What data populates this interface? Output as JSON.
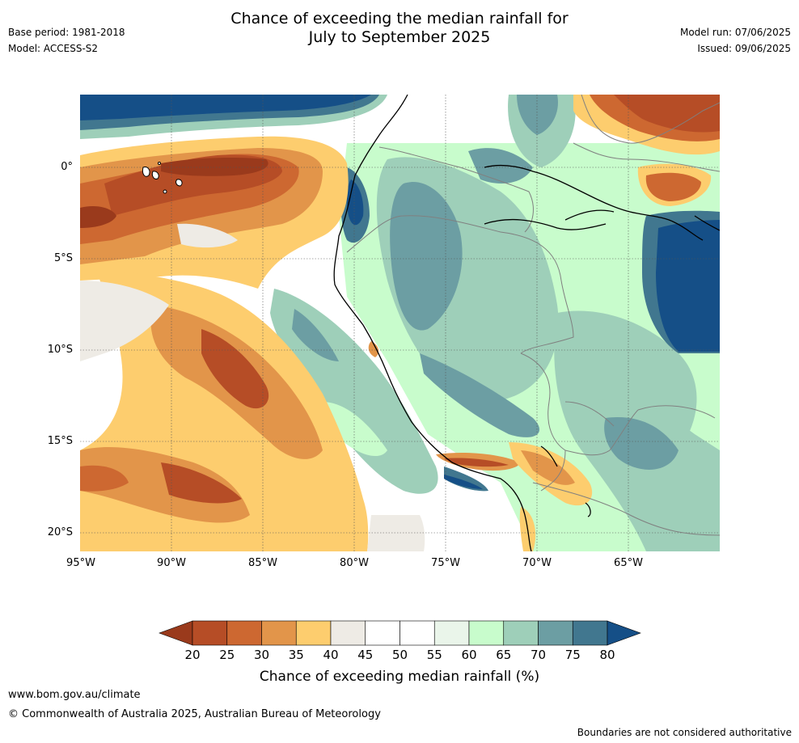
{
  "header": {
    "title_line1": "Chance of exceeding the median rainfall for",
    "title_line2": "July to September 2025",
    "base_period": "Base period: 1981-2018",
    "model": "Model: ACCESS-S2",
    "model_run": "Model run: 07/06/2025",
    "issued": "Issued: 09/06/2025"
  },
  "axes": {
    "lat_labels": [
      "0°",
      "5°S",
      "10°S",
      "15°S",
      "20°S"
    ],
    "lon_labels": [
      "95°W",
      "90°W",
      "85°W",
      "80°W",
      "75°W",
      "70°W",
      "65°W"
    ]
  },
  "colorbar": {
    "title": "Chance of exceeding median rainfall (%)",
    "ticks": [
      "20",
      "25",
      "30",
      "35",
      "40",
      "45",
      "50",
      "55",
      "60",
      "65",
      "70",
      "75",
      "80"
    ],
    "colors": [
      "#9a3a1c",
      "#b64d26",
      "#cd6831",
      "#e2954a",
      "#fdcd6e",
      "#eeebe5",
      "#ffffff",
      "#ffffff",
      "#eaf5ea",
      "#c8fccc",
      "#9ecfb9",
      "#6c9ea3",
      "#41778f",
      "#154f87"
    ],
    "extend": "both"
  },
  "map": {
    "region": "Western South America (Ecuador, Peru, northern Chile, western Brazil)",
    "lon_range": [
      -95,
      -60
    ],
    "lat_range": [
      -21,
      4
    ],
    "gridlines": true
  },
  "footer": {
    "url": "www.bom.gov.au/climate",
    "copyright": "© Commonwealth of Australia 2025, Australian Bureau of Meteorology",
    "disclaimer": "Boundaries are not considered authoritative"
  }
}
